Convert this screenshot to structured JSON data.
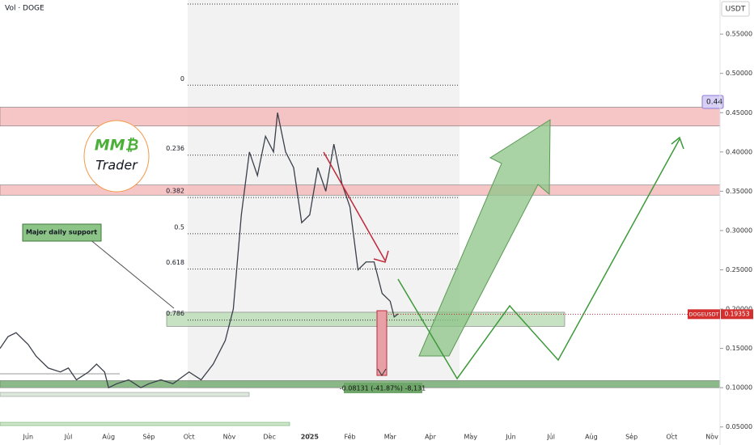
{
  "chart_data": {
    "type": "line",
    "title": "Vol · DOGE",
    "y_unit": "USDT",
    "symbol": "DOGEUSDT",
    "last_price": 0.19353,
    "color": "#3a3f4a",
    "xlim": [
      -0.7,
      17.2
    ],
    "ylim": [
      0.0425,
      0.5625
    ],
    "xticks": [
      {
        "value": 0,
        "label": "Jun"
      },
      {
        "value": 1,
        "label": "Jul"
      },
      {
        "value": 2,
        "label": "Aug"
      },
      {
        "value": 3,
        "label": "Sep"
      },
      {
        "value": 4,
        "label": "Oct"
      },
      {
        "value": 5,
        "label": "Nov"
      },
      {
        "value": 6,
        "label": "Dec"
      },
      {
        "value": 7,
        "label": "2025"
      },
      {
        "value": 8,
        "label": "Feb"
      },
      {
        "value": 9,
        "label": "Mar"
      },
      {
        "value": 10,
        "label": "Apr"
      },
      {
        "value": 11,
        "label": "May"
      },
      {
        "value": 12,
        "label": "Jun"
      },
      {
        "value": 13,
        "label": "Jul"
      },
      {
        "value": 14,
        "label": "Aug"
      },
      {
        "value": 15,
        "label": "Sep"
      },
      {
        "value": 16,
        "label": "Oct"
      },
      {
        "value": 17,
        "label": "Nov"
      }
    ],
    "yticks": [
      {
        "value": 0.05,
        "label": "0.05000"
      },
      {
        "value": 0.1,
        "label": "0.10000"
      },
      {
        "value": 0.15,
        "label": "0.15000"
      },
      {
        "value": 0.2,
        "label": "0.20000"
      },
      {
        "value": 0.25,
        "label": "0.25000"
      },
      {
        "value": 0.3,
        "label": "0.30000"
      },
      {
        "value": 0.35,
        "label": "0.35000"
      },
      {
        "value": 0.4,
        "label": "0.40000"
      },
      {
        "value": 0.45,
        "label": "0.45000"
      },
      {
        "value": 0.5,
        "label": "0.50000"
      },
      {
        "value": 0.55,
        "label": "0.55000"
      }
    ],
    "series": [
      {
        "x": [
          -0.7,
          -0.5,
          -0.3,
          0,
          0.2,
          0.5,
          0.8,
          1,
          1.2,
          1.5,
          1.7,
          1.9,
          2,
          2.2,
          2.5,
          2.8,
          3,
          3.3,
          3.6,
          4,
          4.3,
          4.6,
          4.9,
          5.1,
          5.3,
          5.5,
          5.7,
          5.9,
          6.1,
          6.2,
          6.4,
          6.6,
          6.8,
          7,
          7.2,
          7.4,
          7.6,
          7.8,
          8,
          8.2,
          8.4,
          8.6,
          8.8,
          9,
          9.1,
          9.2
        ],
        "values": [
          0.15,
          0.165,
          0.17,
          0.155,
          0.14,
          0.125,
          0.12,
          0.125,
          0.11,
          0.12,
          0.13,
          0.12,
          0.1,
          0.105,
          0.11,
          0.1,
          0.105,
          0.11,
          0.105,
          0.12,
          0.11,
          0.13,
          0.16,
          0.2,
          0.32,
          0.4,
          0.37,
          0.42,
          0.4,
          0.45,
          0.4,
          0.38,
          0.31,
          0.32,
          0.38,
          0.35,
          0.41,
          0.36,
          0.33,
          0.25,
          0.26,
          0.26,
          0.22,
          0.21,
          0.19,
          0.194
        ]
      }
    ],
    "zones": [
      {
        "low": 0.433,
        "high": 0.457,
        "color": "#f4b6b8"
      },
      {
        "low": 0.345,
        "high": 0.358,
        "color": "#f4b6b8"
      },
      {
        "low": 0.178,
        "high": 0.196,
        "color": "#b9d9b4"
      },
      {
        "low": 0.1,
        "high": 0.109,
        "color": "#6fa76a"
      }
    ],
    "fib": {
      "levels": [
        0,
        0.236,
        0.382,
        0.5,
        0.618,
        0.786
      ],
      "prices": [
        0.485,
        0.396,
        0.342,
        0.296,
        0.251,
        0.186
      ]
    },
    "annotations": {
      "support": "Major daily support",
      "target": "0.44",
      "measure": "-0.08131 (-41.87%) -8,131",
      "logo_top": "MM₿",
      "logo_bottom": "Trader"
    }
  }
}
